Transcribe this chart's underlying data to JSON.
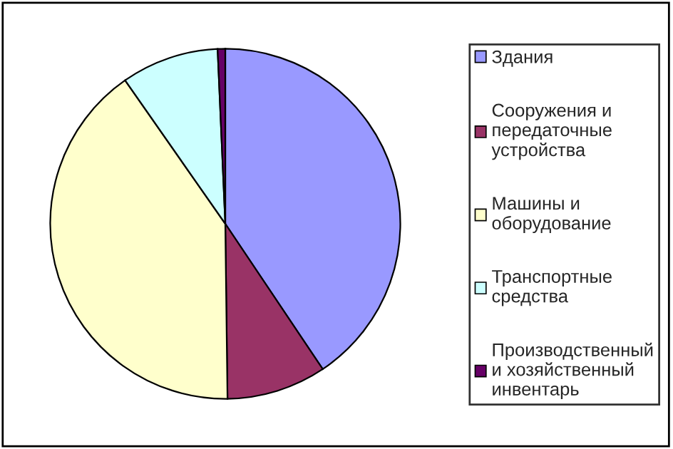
{
  "chart_data": {
    "type": "pie",
    "categories": [
      "Здания",
      "Сооружения и передаточные устройства",
      "Машины и оборудование",
      "Транспортные средства",
      "Производственный и хозяйственный инвентарь"
    ],
    "values": [
      40.6,
      9.2,
      40.5,
      9.0,
      0.7
    ],
    "colors": [
      "#9999ff",
      "#993366",
      "#ffffcc",
      "#ccffff",
      "#660066"
    ],
    "legend": "right"
  }
}
